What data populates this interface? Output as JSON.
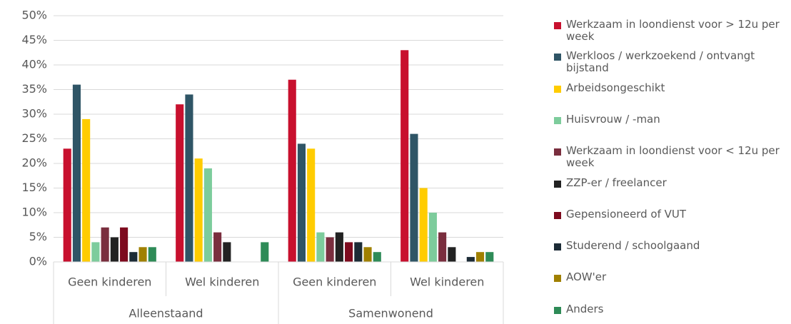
{
  "chart_data": {
    "type": "bar",
    "groups": [
      {
        "name": "Alleenstaand",
        "categories": [
          "Geen kinderen",
          "Wel kinderen"
        ]
      },
      {
        "name": "Samenwonend",
        "categories": [
          "Geen kinderen",
          "Wel kinderen"
        ]
      }
    ],
    "series": [
      {
        "name": "Werkzaam in loondienst voor > 12u per week",
        "color": "#c8102e",
        "values": [
          23,
          32,
          37,
          43
        ]
      },
      {
        "name": "Werkloos / werkzoekend / ontvangt bijstand",
        "color": "#2f5566",
        "values": [
          36,
          34,
          24,
          26
        ]
      },
      {
        "name": "Arbeidsongeschikt",
        "color": "#ffcc00",
        "values": [
          29,
          21,
          23,
          15
        ]
      },
      {
        "name": "Huisvrouw / -man",
        "color": "#7dcc9c",
        "values": [
          4,
          19,
          6,
          10
        ]
      },
      {
        "name": "Werkzaam in loondienst voor < 12u per week",
        "color": "#7a2e3e",
        "values": [
          7,
          6,
          5,
          6
        ]
      },
      {
        "name": "ZZP-er / freelancer",
        "color": "#222222",
        "values": [
          5,
          4,
          6,
          3
        ]
      },
      {
        "name": "Gepensioneerd of VUT",
        "color": "#7d0a1e",
        "values": [
          7,
          0,
          4,
          0
        ]
      },
      {
        "name": "Studerend / schoolgaand",
        "color": "#1c2b36",
        "values": [
          2,
          0,
          4,
          1
        ]
      },
      {
        "name": "AOW'er",
        "color": "#a08000",
        "values": [
          3,
          0,
          3,
          2
        ]
      },
      {
        "name": "Anders",
        "color": "#2e8b57",
        "values": [
          3,
          4,
          2,
          2
        ]
      }
    ],
    "ylim": [
      0,
      50
    ],
    "yticks": [
      {
        "value": 0,
        "label": "0%"
      },
      {
        "value": 5,
        "label": "5%"
      },
      {
        "value": 10,
        "label": "10%"
      },
      {
        "value": 15,
        "label": "15%"
      },
      {
        "value": 20,
        "label": "20%"
      },
      {
        "value": 25,
        "label": "25%"
      },
      {
        "value": 30,
        "label": "30%"
      },
      {
        "value": 35,
        "label": "35%"
      },
      {
        "value": 40,
        "label": "40%"
      },
      {
        "value": 45,
        "label": "45%"
      },
      {
        "value": 50,
        "label": "50%"
      }
    ],
    "grid": true
  }
}
